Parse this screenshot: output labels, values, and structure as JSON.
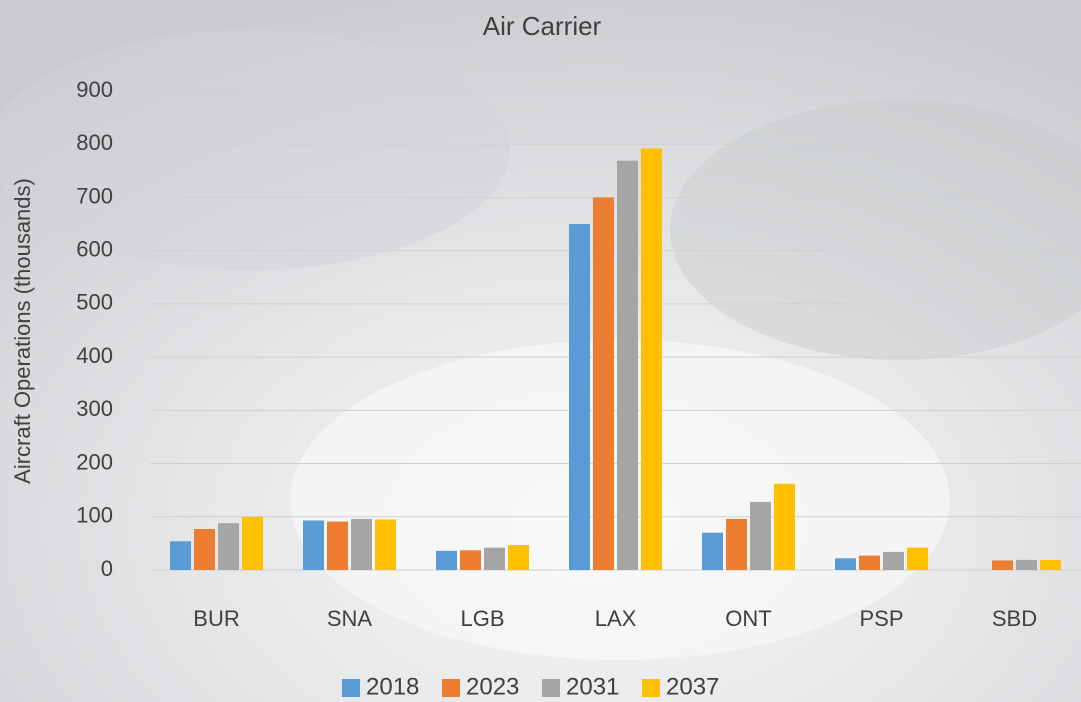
{
  "chart_data": {
    "type": "bar",
    "title": "Air Carrier",
    "y_label": "Aircraft Operations (thousands)",
    "categories": [
      "BUR",
      "SNA",
      "LGB",
      "LAX",
      "ONT",
      "PSP",
      "SBD"
    ],
    "series": [
      {
        "name": "2018",
        "color": "#5b9bd5",
        "values": [
          54,
          93,
          36,
          650,
          70,
          22,
          null
        ]
      },
      {
        "name": "2023",
        "color": "#ed7d31",
        "values": [
          77,
          91,
          37,
          700,
          96,
          27,
          18
        ]
      },
      {
        "name": "2031",
        "color": "#a5a5a5",
        "values": [
          88,
          96,
          42,
          769,
          128,
          34,
          19
        ]
      },
      {
        "name": "2037",
        "color": "#ffc000",
        "values": [
          100,
          95,
          47,
          792,
          162,
          42,
          19
        ]
      }
    ],
    "ylim": [
      0,
      900
    ],
    "yticks": [
      0,
      100,
      200,
      300,
      400,
      500,
      600,
      700,
      800,
      900
    ],
    "grid": true,
    "legend": "bottom"
  }
}
